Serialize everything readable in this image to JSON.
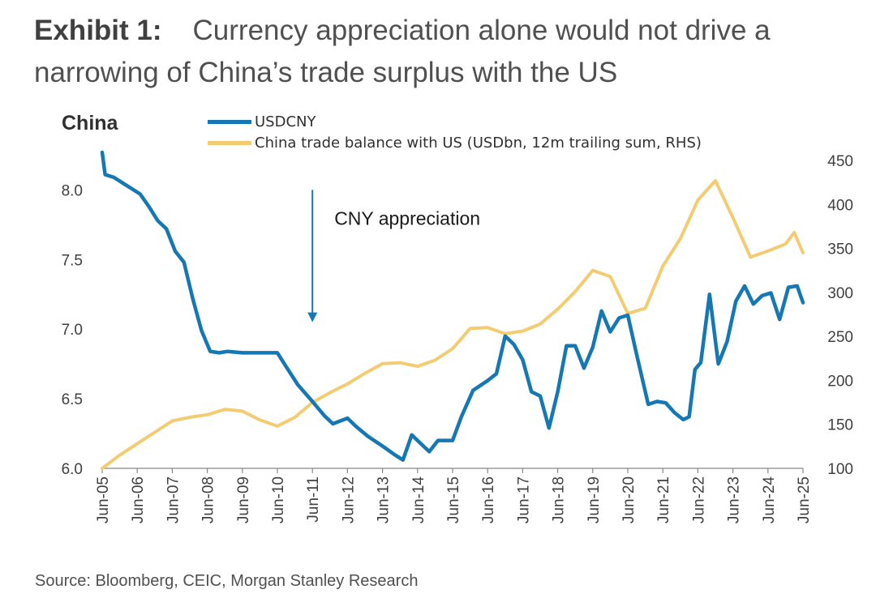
{
  "header": {
    "exhibit_label": "Exhibit 1:",
    "title_text": "Currency appreciation alone would not drive a narrowing of China’s trade surplus with the US"
  },
  "region_label": "China",
  "source": "Source: Bloomberg, CEIC, Morgan Stanley Research",
  "colors": {
    "usdcny": "#1578b4",
    "trade_balance": "#f3cc72",
    "axis": "#888888",
    "text": "#404040"
  },
  "chart_data": {
    "type": "line",
    "x_start": "2005-06",
    "x_end": "2025-06",
    "x_tick_labels": [
      "Jun-05",
      "Jun-06",
      "Jun-07",
      "Jun-08",
      "Jun-09",
      "Jun-10",
      "Jun-11",
      "Jun-12",
      "Jun-13",
      "Jun-14",
      "Jun-15",
      "Jun-16",
      "Jun-17",
      "Jun-18",
      "Jun-19",
      "Jun-20",
      "Jun-21",
      "Jun-22",
      "Jun-23",
      "Jun-24",
      "Jun-25"
    ],
    "y_left": {
      "range": [
        6.0,
        8.2
      ],
      "ticks": [
        6.0,
        6.5,
        7.0,
        7.5,
        8.0
      ],
      "tick_labels": [
        "6.0",
        "6.5",
        "7.0",
        "7.5",
        "8.0"
      ]
    },
    "y_right": {
      "range": [
        100,
        450
      ],
      "ticks": [
        100,
        150,
        200,
        250,
        300,
        350,
        400,
        450
      ],
      "tick_labels": [
        "100",
        "150",
        "200",
        "250",
        "300",
        "350",
        "400",
        "450"
      ]
    },
    "legend_placement": "top",
    "grid": false,
    "annotation": {
      "text": "CNY appreciation",
      "x": "2011-06",
      "arrow_from": 8.0,
      "arrow_to": 7.05
    },
    "series": [
      {
        "name": "USDCNY",
        "axis": "left",
        "points": [
          [
            "2005-06",
            8.27
          ],
          [
            "2005-07",
            8.11
          ],
          [
            "2005-10",
            8.09
          ],
          [
            "2006-01",
            8.05
          ],
          [
            "2006-04",
            8.01
          ],
          [
            "2006-07",
            7.97
          ],
          [
            "2006-10",
            7.88
          ],
          [
            "2007-01",
            7.78
          ],
          [
            "2007-04",
            7.72
          ],
          [
            "2007-07",
            7.56
          ],
          [
            "2007-10",
            7.48
          ],
          [
            "2008-01",
            7.22
          ],
          [
            "2008-04",
            6.99
          ],
          [
            "2008-07",
            6.84
          ],
          [
            "2008-10",
            6.83
          ],
          [
            "2009-01",
            6.84
          ],
          [
            "2009-06",
            6.83
          ],
          [
            "2010-01",
            6.83
          ],
          [
            "2010-06",
            6.83
          ],
          [
            "2010-09",
            6.73
          ],
          [
            "2011-01",
            6.6
          ],
          [
            "2011-06",
            6.48
          ],
          [
            "2011-10",
            6.38
          ],
          [
            "2012-01",
            6.32
          ],
          [
            "2012-06",
            6.36
          ],
          [
            "2012-09",
            6.3
          ],
          [
            "2013-01",
            6.23
          ],
          [
            "2013-06",
            6.16
          ],
          [
            "2013-10",
            6.1
          ],
          [
            "2014-01",
            6.06
          ],
          [
            "2014-04",
            6.24
          ],
          [
            "2014-07",
            6.18
          ],
          [
            "2014-10",
            6.12
          ],
          [
            "2015-01",
            6.2
          ],
          [
            "2015-06",
            6.2
          ],
          [
            "2015-09",
            6.37
          ],
          [
            "2016-01",
            6.56
          ],
          [
            "2016-06",
            6.63
          ],
          [
            "2016-09",
            6.68
          ],
          [
            "2016-12",
            6.95
          ],
          [
            "2017-03",
            6.89
          ],
          [
            "2017-06",
            6.78
          ],
          [
            "2017-09",
            6.55
          ],
          [
            "2017-12",
            6.52
          ],
          [
            "2018-03",
            6.29
          ],
          [
            "2018-06",
            6.55
          ],
          [
            "2018-09",
            6.88
          ],
          [
            "2018-12",
            6.88
          ],
          [
            "2019-03",
            6.72
          ],
          [
            "2019-06",
            6.87
          ],
          [
            "2019-09",
            7.13
          ],
          [
            "2019-12",
            6.98
          ],
          [
            "2020-03",
            7.08
          ],
          [
            "2020-06",
            7.1
          ],
          [
            "2020-09",
            6.82
          ],
          [
            "2021-01",
            6.46
          ],
          [
            "2021-04",
            6.48
          ],
          [
            "2021-07",
            6.47
          ],
          [
            "2021-10",
            6.4
          ],
          [
            "2022-01",
            6.35
          ],
          [
            "2022-03",
            6.37
          ],
          [
            "2022-05",
            6.71
          ],
          [
            "2022-07",
            6.76
          ],
          [
            "2022-10",
            7.25
          ],
          [
            "2023-01",
            6.75
          ],
          [
            "2023-04",
            6.91
          ],
          [
            "2023-07",
            7.2
          ],
          [
            "2023-10",
            7.31
          ],
          [
            "2024-01",
            7.18
          ],
          [
            "2024-04",
            7.24
          ],
          [
            "2024-07",
            7.26
          ],
          [
            "2024-10",
            7.07
          ],
          [
            "2025-01",
            7.3
          ],
          [
            "2025-04",
            7.31
          ],
          [
            "2025-06",
            7.19
          ]
        ]
      },
      {
        "name": "China trade balance with US (USDbn, 12m trailing sum, RHS)",
        "axis": "right",
        "points": [
          [
            "2005-06",
            100
          ],
          [
            "2005-12",
            115
          ],
          [
            "2006-06",
            128
          ],
          [
            "2006-12",
            141
          ],
          [
            "2007-06",
            154
          ],
          [
            "2007-12",
            158
          ],
          [
            "2008-06",
            161
          ],
          [
            "2008-12",
            167
          ],
          [
            "2009-06",
            165
          ],
          [
            "2009-12",
            155
          ],
          [
            "2010-06",
            148
          ],
          [
            "2010-12",
            158
          ],
          [
            "2011-06",
            175
          ],
          [
            "2011-12",
            186
          ],
          [
            "2012-06",
            196
          ],
          [
            "2012-12",
            208
          ],
          [
            "2013-06",
            219
          ],
          [
            "2013-12",
            220
          ],
          [
            "2014-06",
            216
          ],
          [
            "2014-12",
            223
          ],
          [
            "2015-06",
            236
          ],
          [
            "2015-12",
            259
          ],
          [
            "2016-06",
            260
          ],
          [
            "2016-12",
            253
          ],
          [
            "2017-06",
            256
          ],
          [
            "2017-12",
            264
          ],
          [
            "2018-06",
            281
          ],
          [
            "2018-12",
            301
          ],
          [
            "2019-06",
            325
          ],
          [
            "2019-12",
            318
          ],
          [
            "2020-06",
            276
          ],
          [
            "2020-12",
            282
          ],
          [
            "2021-06",
            330
          ],
          [
            "2021-12",
            361
          ],
          [
            "2022-06",
            405
          ],
          [
            "2022-12",
            427
          ],
          [
            "2023-06",
            385
          ],
          [
            "2023-12",
            340
          ],
          [
            "2024-06",
            347
          ],
          [
            "2024-12",
            355
          ],
          [
            "2025-03",
            368
          ],
          [
            "2025-06",
            345
          ]
        ]
      }
    ]
  }
}
